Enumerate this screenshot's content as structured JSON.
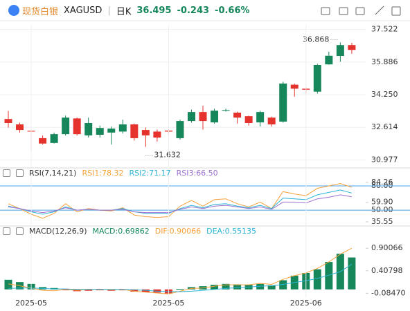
{
  "header": {
    "name": "现货白银",
    "symbol": "XAGUSD",
    "period": "日K",
    "price": "36.495",
    "change": "-0.243",
    "change_pct": "-0.66%"
  },
  "chart_data": [
    {
      "type": "candlestick",
      "up_color": "#16875a",
      "down_color": "#e5322d",
      "open": [
        33.03,
        32.76,
        32.44,
        32.07,
        31.83,
        32.27,
        33.06,
        32.21,
        32.24,
        32.35,
        32.4,
        32.76,
        32.48,
        32.4,
        32.45,
        32.07,
        32.93,
        33.38,
        32.86,
        33.45,
        33.35,
        33.17,
        32.86,
        33.1,
        32.9,
        34.75,
        34.55,
        34.4,
        35.77,
        36.19,
        36.738
      ],
      "high": [
        33.44,
        32.85,
        32.5,
        32.2,
        32.35,
        33.2,
        33.1,
        33.1,
        32.7,
        32.65,
        33.0,
        32.8,
        32.6,
        32.5,
        32.55,
        33.0,
        33.5,
        33.7,
        33.55,
        33.55,
        33.4,
        33.2,
        33.45,
        33.15,
        34.9,
        34.8,
        34.6,
        35.8,
        36.4,
        36.868,
        36.85
      ],
      "low": [
        32.6,
        32.35,
        31.45,
        31.75,
        31.8,
        32.2,
        32.2,
        32.1,
        32.1,
        31.75,
        32.3,
        31.95,
        31.632,
        31.9,
        32.2,
        32.0,
        32.85,
        32.5,
        32.8,
        33.4,
        32.8,
        32.7,
        32.65,
        32.65,
        32.85,
        34.15,
        34.3,
        34.3,
        35.75,
        35.9,
        36.3
      ],
      "close": [
        32.83,
        32.48,
        32.4,
        31.8,
        32.27,
        33.1,
        32.27,
        32.83,
        32.58,
        32.55,
        32.76,
        32.07,
        32.21,
        32.1,
        32.4,
        32.93,
        33.38,
        32.93,
        33.45,
        33.48,
        33.1,
        32.83,
        33.38,
        32.76,
        34.81,
        34.55,
        34.5,
        35.74,
        36.2,
        36.738,
        36.495
      ],
      "annotations": [
        36.868,
        31.632
      ],
      "ylim": [
        30.75,
        37.75
      ],
      "yticks": [
        37.522,
        35.886,
        {
          "value": 34.25,
          "label": "34.250"
        },
        32.614,
        30.977
      ],
      "grid": true
    },
    {
      "type": "line",
      "title": "RSI(7,14,21)",
      "series": [
        {
          "name": "RSI1:78.32",
          "color": "#f5a13a",
          "values": [
            58,
            52,
            45,
            40,
            46,
            58,
            48,
            52,
            50,
            49,
            53,
            44,
            42,
            41,
            42,
            55,
            62,
            55,
            63,
            64,
            58,
            54,
            60,
            52,
            73,
            70,
            68,
            77,
            80,
            83,
            78.32
          ]
        },
        {
          "name": "RSI2:71.17",
          "color": "#2bb3d4",
          "values": [
            55,
            52,
            48,
            45,
            48,
            54,
            50,
            51,
            50,
            50,
            52,
            48,
            46,
            46,
            46,
            52,
            56,
            53,
            57,
            58,
            55,
            53,
            56,
            52,
            65,
            64,
            63,
            69,
            72,
            75,
            71.17
          ]
        },
        {
          "name": "RSI3:66.50",
          "color": "#9b6fd0",
          "values": [
            54,
            52,
            49,
            47,
            49,
            53,
            50,
            51,
            50,
            50,
            51,
            48,
            47,
            47,
            47,
            51,
            54,
            52,
            55,
            56,
            54,
            52,
            54,
            51,
            60,
            60,
            59,
            64,
            66,
            69,
            66.5
          ]
        }
      ],
      "reference_lines": [
        80,
        50
      ],
      "reference_color": "#4aa3e8",
      "ylim": [
        33,
        86
      ],
      "yticks": [
        {
          "value": 80,
          "label": "80.00"
        },
        {
          "value": 84.26,
          "label": "84.26"
        },
        {
          "value": 59.9,
          "label": "59.90"
        },
        {
          "value": 50,
          "label": "50.00"
        },
        35.55
      ]
    },
    {
      "type": "combo",
      "title": "MACD(12,26,9)",
      "categories": [
        null,
        null,
        "2025-05",
        null,
        null,
        null,
        null,
        null,
        null,
        null,
        null,
        null,
        null,
        null,
        "2025-05",
        null,
        null,
        null,
        null,
        null,
        null,
        null,
        null,
        null,
        null,
        null,
        "2025-06",
        null,
        null,
        null,
        null
      ],
      "series": [
        {
          "name": "MACD:0.69862",
          "type": "bar",
          "color": "#16875a",
          "negative_color": "#e5322d",
          "values": [
            0.21,
            0.16,
            0.12,
            0.05,
            0.03,
            -0.02,
            -0.04,
            -0.03,
            -0.02,
            -0.03,
            -0.02,
            -0.05,
            -0.06,
            -0.07,
            -0.09,
            0.01,
            0.05,
            0.07,
            0.1,
            0.12,
            0.11,
            0.1,
            0.12,
            0.09,
            0.2,
            0.3,
            0.36,
            0.44,
            0.6,
            0.78,
            0.69862
          ]
        },
        {
          "name": "DIF:0.90066",
          "type": "line",
          "color": "#f5a13a",
          "values": [
            0.12,
            0.08,
            0.03,
            -0.02,
            -0.03,
            0,
            -0.02,
            0,
            0,
            -0.01,
            0,
            -0.04,
            -0.06,
            -0.08,
            -0.1,
            -0.04,
            0.02,
            0.03,
            0.07,
            0.1,
            0.1,
            0.1,
            0.13,
            0.11,
            0.22,
            0.3,
            0.36,
            0.46,
            0.6,
            0.77,
            0.90066
          ]
        },
        {
          "name": "DEA:0.55135",
          "type": "line",
          "color": "#2bb3d4",
          "values": [
            0.02,
            0.03,
            0.03,
            0.02,
            0.01,
            0.01,
            0,
            0,
            0,
            0,
            0,
            -0.01,
            -0.02,
            -0.04,
            -0.05,
            -0.05,
            -0.04,
            -0.02,
            0,
            0.02,
            0.04,
            0.05,
            0.07,
            0.08,
            0.11,
            0.15,
            0.19,
            0.24,
            0.31,
            0.39,
            0.55135
          ]
        }
      ],
      "ylim": [
        -0.14,
        1.1
      ],
      "yticks": [
        0.90066,
        0.40798,
        {
          "value": -0.0847,
          "label": "-0.08470"
        }
      ]
    }
  ]
}
